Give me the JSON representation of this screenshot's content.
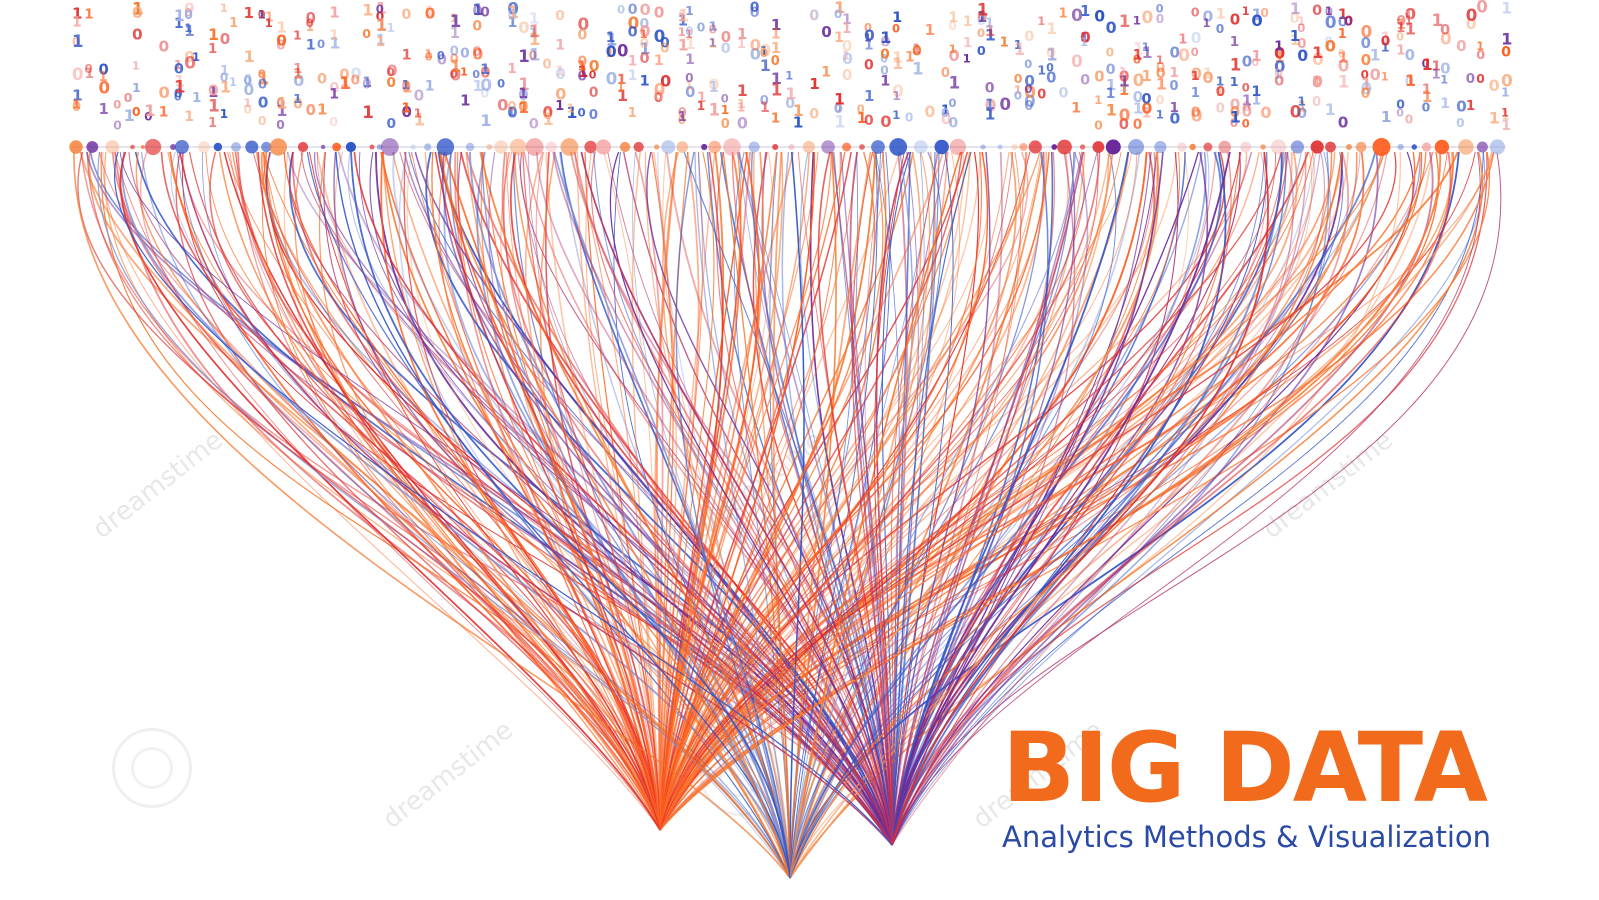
{
  "title": "BIG DATA",
  "subtitle": "Analytics Methods & Visualization",
  "watermark": "dreamstime",
  "colors": {
    "accent_orange": "#f26a1b",
    "accent_blue": "#2a4aa6",
    "red": "#e02d2d",
    "orange": "#f5762a",
    "deep_orange": "#ff5a1a",
    "blue": "#2f55c8",
    "purple": "#6a2a9c"
  },
  "binary_digits": [
    "0",
    "1"
  ]
}
